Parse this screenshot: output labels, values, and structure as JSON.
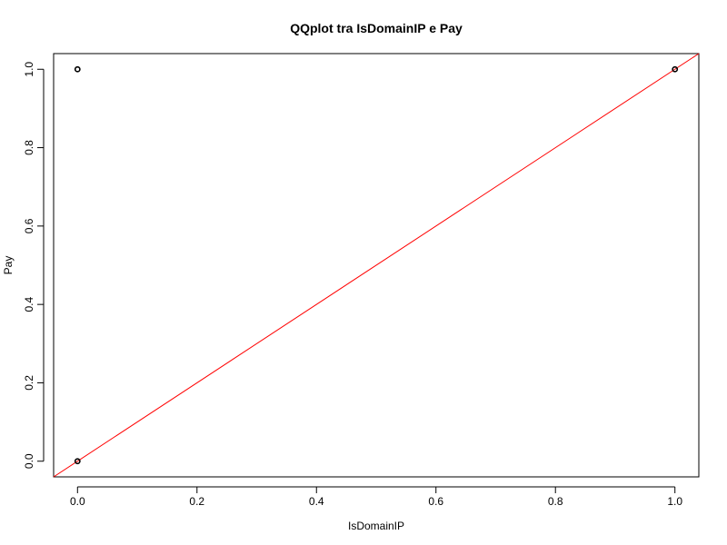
{
  "chart_data": {
    "type": "scatter",
    "title": "QQplot tra IsDomainIP e Pay",
    "xlabel": "IsDomainIP",
    "ylabel": "Pay",
    "xlim": [
      -0.04,
      1.04
    ],
    "ylim": [
      -0.04,
      1.04
    ],
    "x_ticks": [
      0.0,
      0.2,
      0.4,
      0.6,
      0.8,
      1.0
    ],
    "y_ticks": [
      0.0,
      0.2,
      0.4,
      0.6,
      0.8,
      1.0
    ],
    "x_tick_labels": [
      "0.0",
      "0.2",
      "0.4",
      "0.6",
      "0.8",
      "1.0"
    ],
    "y_tick_labels": [
      "0.0",
      "0.2",
      "0.4",
      "0.6",
      "0.8",
      "1.0"
    ],
    "grid": false,
    "points": [
      {
        "x": 0.0,
        "y": 0.0
      },
      {
        "x": 0.0,
        "y": 1.0
      },
      {
        "x": 1.0,
        "y": 1.0
      }
    ],
    "reference_line": {
      "intercept": 0,
      "slope": 1,
      "color": "#ff0000"
    },
    "point_color": "#000000"
  }
}
